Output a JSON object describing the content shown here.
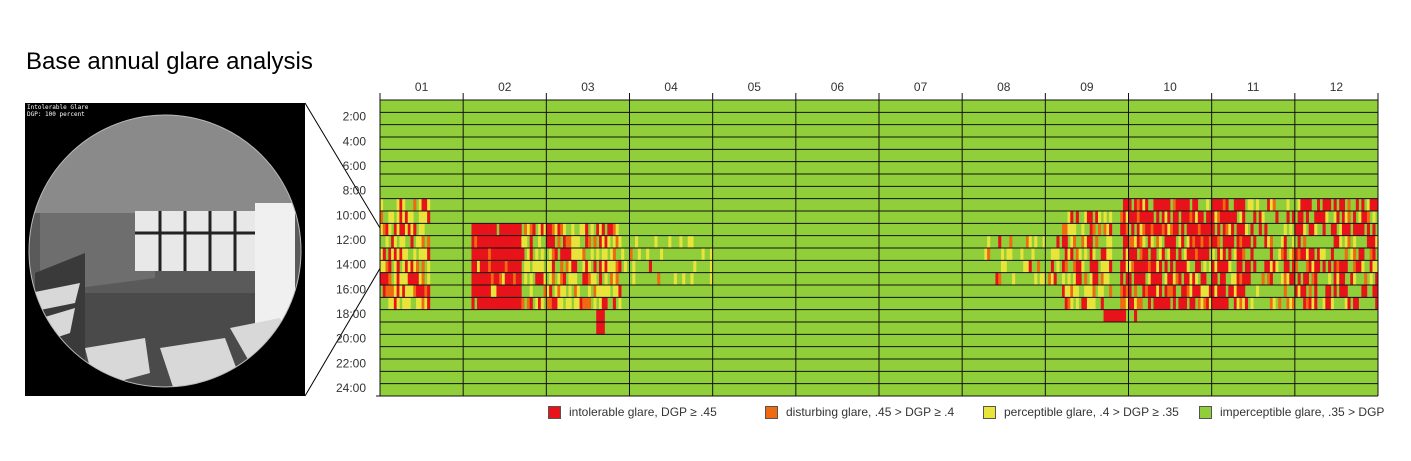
{
  "title": "Base annual glare analysis",
  "fisheye": {
    "caption_line1": "Intolerable Glare",
    "caption_line2": "DGP: 100 percent"
  },
  "colors": {
    "intolerable": "#e8121a",
    "disturbing": "#ef6a10",
    "perceptible": "#e8e43a",
    "imperceptible": "#91cf3a"
  },
  "chart_data": {
    "type": "heatmap",
    "title": "",
    "xlabel": "",
    "ylabel": "",
    "x_months": [
      "01",
      "02",
      "03",
      "04",
      "05",
      "06",
      "07",
      "08",
      "09",
      "10",
      "11",
      "12"
    ],
    "y_hours": [
      "2:00",
      "4:00",
      "6:00",
      "8:00",
      "10:00",
      "12:00",
      "14:00",
      "16:00",
      "18:00",
      "20:00",
      "22:00",
      "24:00"
    ],
    "grid": true,
    "legend_position": "bottom-right",
    "legend": [
      {
        "key": "intolerable",
        "label": "intolerable glare, DGP ≥ .45"
      },
      {
        "key": "disturbing",
        "label": "disturbing glare, .45 > DGP ≥ .4"
      },
      {
        "key": "perceptible",
        "label": "perceptible glare, .4 > DGP ≥ .35"
      },
      {
        "key": "imperceptible",
        "label": "imperceptible glare, .35 > DGP"
      }
    ],
    "patches": [
      {
        "month_from": 1,
        "month_to": 1.6,
        "hour_from": 8,
        "hour_to": 16.5,
        "density": {
          "intolerable": 0.3,
          "disturbing": 0.08,
          "perceptible": 0.32
        }
      },
      {
        "month_from": 2.1,
        "month_to": 2.7,
        "hour_from": 10,
        "hour_to": 16.5,
        "density": {
          "intolerable": 0.9,
          "disturbing": 0.05,
          "perceptible": 0.03
        }
      },
      {
        "month_from": 2.7,
        "month_to": 3.9,
        "hour_from": 10,
        "hour_to": 16.5,
        "density": {
          "intolerable": 0.18,
          "disturbing": 0.14,
          "perceptible": 0.35
        }
      },
      {
        "month_from": 3.9,
        "month_to": 5,
        "hour_from": 11,
        "hour_to": 15,
        "density": {
          "intolerable": 0.01,
          "disturbing": 0.02,
          "perceptible": 0.2
        }
      },
      {
        "month_from": 8.2,
        "month_to": 9.2,
        "hour_from": 11,
        "hour_to": 15,
        "density": {
          "intolerable": 0.02,
          "disturbing": 0.02,
          "perceptible": 0.2
        }
      },
      {
        "month_from": 9.2,
        "month_to": 9.8,
        "hour_from": 9,
        "hour_to": 16.5,
        "density": {
          "intolerable": 0.2,
          "disturbing": 0.1,
          "perceptible": 0.35
        }
      },
      {
        "month_from": 9.9,
        "month_to": 11.4,
        "hour_from": 8,
        "hour_to": 16.5,
        "density": {
          "intolerable": 0.55,
          "disturbing": 0.1,
          "perceptible": 0.15
        }
      },
      {
        "month_from": 11.4,
        "month_to": 12,
        "hour_from": 8,
        "hour_to": 16.5,
        "density": {
          "intolerable": 0.25,
          "disturbing": 0.05,
          "perceptible": 0.12
        }
      },
      {
        "month_from": 12,
        "month_to": 13,
        "hour_from": 8,
        "hour_to": 16.5,
        "density": {
          "intolerable": 0.35,
          "disturbing": 0.05,
          "perceptible": 0.15
        }
      },
      {
        "month_from": 3.6,
        "month_to": 3.7,
        "hour_from": 17.5,
        "hour_to": 18.5,
        "density": {
          "intolerable": 0.8
        }
      },
      {
        "month_from": 9.7,
        "month_to": 10.1,
        "hour_from": 17.5,
        "hour_to": 18,
        "density": {
          "intolerable": 0.6
        }
      }
    ]
  }
}
